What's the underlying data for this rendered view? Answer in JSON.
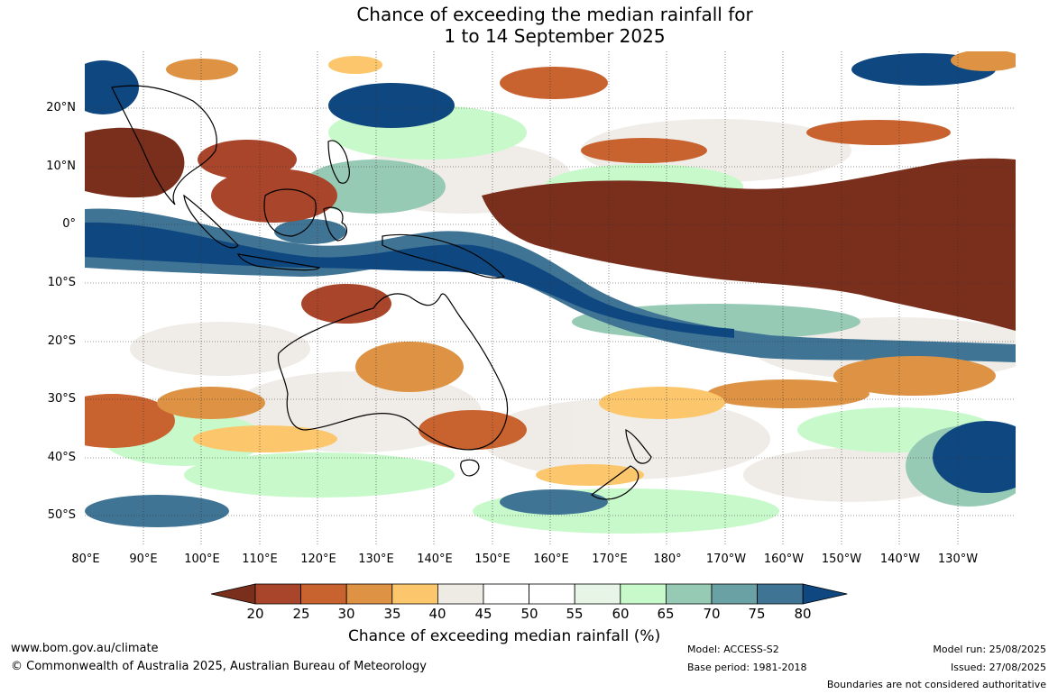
{
  "title": {
    "line1": "Chance of exceeding the median rainfall for",
    "line2": "1 to 14 September 2025"
  },
  "map": {
    "lat_labels": [
      "20°N",
      "10°N",
      "0°",
      "10°S",
      "20°S",
      "30°S",
      "40°S",
      "50°S"
    ],
    "lon_labels": [
      "80°E",
      "90°E",
      "100°E",
      "110°E",
      "120°E",
      "130°E",
      "140°E",
      "150°E",
      "160°E",
      "170°E",
      "180°",
      "170°W",
      "160°W",
      "150°W",
      "140°W",
      "130°W"
    ]
  },
  "colorbar": {
    "title": "Chance of exceeding median rainfall (%)",
    "ticks": [
      "20",
      "25",
      "30",
      "35",
      "40",
      "45",
      "50",
      "55",
      "60",
      "65",
      "70",
      "75",
      "80"
    ],
    "below_color": "#7a2e1c",
    "above_color": "#0f4880",
    "colors": [
      "#a8452a",
      "#c8622f",
      "#de9344",
      "#fcc76c",
      "#eeebe5",
      "#ffffff",
      "#ffffff",
      "#e6f5e5",
      "#c8f9cb",
      "#96cab4",
      "#6aa1a4",
      "#3f7495"
    ]
  },
  "footer": {
    "website": "www.bom.gov.au/climate",
    "copyright": "© Commonwealth of Australia 2025, Australian Bureau of Meteorology",
    "model": "Model: ACCESS-S2",
    "base_period": "Base period: 1981-2018",
    "model_run": "Model run: 25/08/2025",
    "issued": "Issued: 27/08/2025",
    "disclaimer": "Boundaries are not considered authoritative"
  }
}
